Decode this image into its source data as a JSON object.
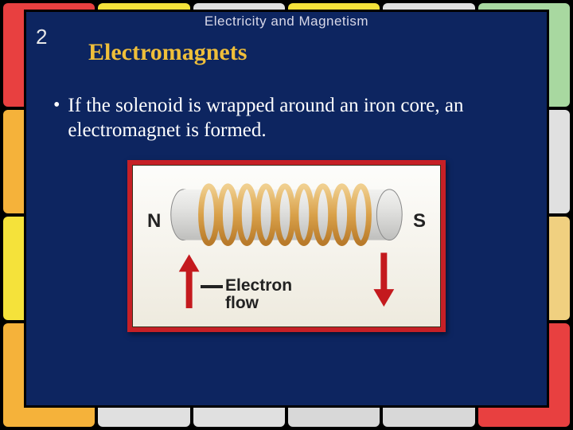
{
  "chapter": {
    "number": "2",
    "title": "Electricity and Magnetism"
  },
  "heading": "Electromagnets",
  "bullet": "If the solenoid is wrapped around an iron core, an electromagnet is formed.",
  "figure": {
    "pole_left": "N",
    "pole_right": "S",
    "flow_label": "Electron\nflow",
    "frame_color": "#c62026",
    "bg_gradient_top": "#fdfdfb",
    "bg_gradient_bottom": "#eeeade",
    "core_color_light": "#e4e4e2",
    "core_color_dark": "#bfbfbd",
    "wire_color": "#d9a14a",
    "wire_highlight": "#f0cf8f",
    "arrow_up_color": "#c41a1e",
    "arrow_down_color": "#c41a1e"
  },
  "colors": {
    "slide_bg": "#0d2560",
    "heading_color": "#efbf3a",
    "text_color": "#ffffff"
  },
  "bg_tiles": [
    {
      "c": "#e84040"
    },
    {
      "c": "#f5e23a"
    },
    {
      "c": "#e0e0e0"
    },
    {
      "c": "#f5e23a"
    },
    {
      "c": "#e0e0e0"
    },
    {
      "c": "#a8d8a0"
    },
    {
      "c": "#f5b23a"
    },
    {
      "c": "#4aa0e0"
    },
    {
      "c": "#e0e0e0"
    },
    {
      "c": "#f5e23a"
    },
    {
      "c": "#f5e23a"
    },
    {
      "c": "#e0e0e0"
    },
    {
      "c": "#f5e23a"
    },
    {
      "c": "#4aa0e0"
    },
    {
      "c": "#e0e0e0"
    },
    {
      "c": "#f5e23a"
    },
    {
      "c": "#e0e0e0"
    },
    {
      "c": "#f0d080"
    },
    {
      "c": "#f5b23a"
    },
    {
      "c": "#e0e0e0"
    },
    {
      "c": "#e0e0e0"
    },
    {
      "c": "#d8d8d8"
    },
    {
      "c": "#d8d8d8"
    },
    {
      "c": "#e84040"
    }
  ]
}
